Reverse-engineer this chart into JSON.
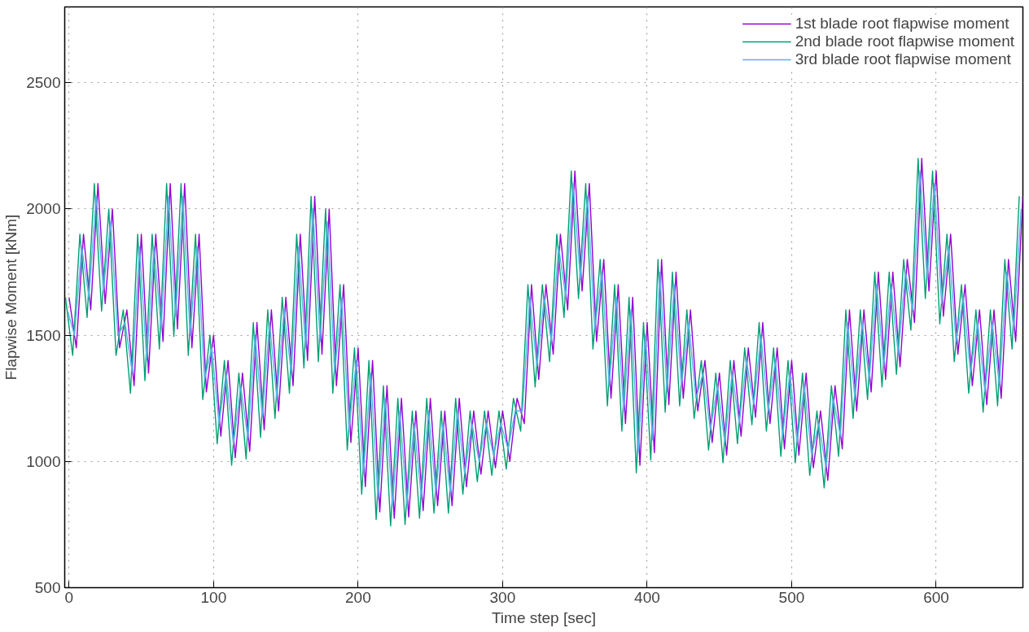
{
  "chart_data": {
    "type": "line",
    "xlabel": "Time step [sec]",
    "ylabel": "Flapwise Moment [kNm]",
    "xlim": [
      -3,
      660
    ],
    "ylim": [
      500,
      2800
    ],
    "xticks": [
      0,
      100,
      200,
      300,
      400,
      500,
      600
    ],
    "yticks": [
      500,
      1000,
      1500,
      2000,
      2500
    ],
    "grid": true,
    "legend": "top right",
    "line_style": "solid",
    "marker": "none",
    "x": [
      0,
      5,
      10,
      15,
      20,
      25,
      30,
      35,
      40,
      45,
      50,
      55,
      60,
      65,
      70,
      75,
      80,
      85,
      90,
      95,
      100,
      105,
      110,
      115,
      120,
      125,
      130,
      135,
      140,
      145,
      150,
      155,
      160,
      165,
      170,
      175,
      180,
      185,
      190,
      195,
      200,
      205,
      210,
      215,
      220,
      225,
      230,
      235,
      240,
      245,
      250,
      255,
      260,
      265,
      270,
      275,
      280,
      285,
      290,
      295,
      300,
      305,
      310,
      315,
      320,
      325,
      330,
      335,
      340,
      345,
      350,
      355,
      360,
      365,
      370,
      375,
      380,
      385,
      390,
      395,
      400,
      405,
      410,
      415,
      420,
      425,
      430,
      435,
      440,
      445,
      450,
      455,
      460,
      465,
      470,
      475,
      480,
      485,
      490,
      495,
      500,
      505,
      510,
      515,
      520,
      525,
      530,
      535,
      540,
      545,
      550,
      555,
      560,
      565,
      570,
      575,
      580,
      585,
      590,
      595,
      600,
      605,
      610,
      615,
      620,
      625,
      630,
      635,
      640,
      645,
      650,
      655,
      660
    ],
    "series": [
      {
        "name": "1st blade root flapwise moment",
        "color": "#9400d3",
        "values": [
          1650,
          1450,
          1900,
          1600,
          2100,
          1625,
          2000,
          1450,
          1600,
          1300,
          1900,
          1350,
          1900,
          1475,
          2100,
          1525,
          2100,
          1450,
          1900,
          1275,
          1500,
          1100,
          1400,
          1015,
          1350,
          1040,
          1550,
          1125,
          1600,
          1200,
          1650,
          1300,
          1900,
          1400,
          2050,
          1425,
          2000,
          1300,
          1700,
          1075,
          1450,
          900,
          1400,
          800,
          1300,
          775,
          1250,
          780,
          1200,
          805,
          1250,
          825,
          1200,
          825,
          1250,
          900,
          1200,
          950,
          1200,
          975,
          1200,
          1000,
          1250,
          1150,
          1700,
          1325,
          1700,
          1425,
          1900,
          1600,
          2150,
          1675,
          2100,
          1475,
          1800,
          1250,
          1700,
          1150,
          1650,
          985,
          1550,
          1035,
          1800,
          1225,
          1750,
          1250,
          1600,
          1200,
          1400,
          1075,
          1350,
          1025,
          1400,
          1100,
          1450,
          1175,
          1550,
          1150,
          1450,
          1050,
          1400,
          1025,
          1350,
          975,
          1200,
          925,
          1300,
          1050,
          1600,
          1200,
          1600,
          1275,
          1750,
          1325,
          1750,
          1375,
          1800,
          1550,
          2200,
          1675,
          2150,
          1575,
          1900,
          1425,
          1700,
          1300,
          1600,
          1225,
          1600,
          1250,
          1800,
          1475,
          2050
        ]
      },
      {
        "name": "2nd blade root flapwise moment",
        "color": "#009e73",
        "x": [
          -2.5,
          2.5,
          7.5,
          12.5,
          17.5,
          22.5,
          27.5,
          32.5,
          37.5,
          42.5,
          47.5,
          52.5,
          57.5,
          62.5,
          67.5,
          72.5,
          77.5,
          82.5,
          87.5,
          92.5,
          97.5,
          102.5,
          107.5,
          112.5,
          117.5,
          122.5,
          127.5,
          132.5,
          137.5,
          142.5,
          147.5,
          152.5,
          157.5,
          162.5,
          167.5,
          172.5,
          177.5,
          182.5,
          187.5,
          192.5,
          197.5,
          202.5,
          207.5,
          212.5,
          217.5,
          222.5,
          227.5,
          232.5,
          237.5,
          242.5,
          247.5,
          252.5,
          257.5,
          262.5,
          267.5,
          272.5,
          277.5,
          282.5,
          287.5,
          292.5,
          297.5,
          302.5,
          307.5,
          312.5,
          317.5,
          322.5,
          327.5,
          332.5,
          337.5,
          342.5,
          347.5,
          352.5,
          357.5,
          362.5,
          367.5,
          372.5,
          377.5,
          382.5,
          387.5,
          392.5,
          397.5,
          402.5,
          407.5,
          412.5,
          417.5,
          422.5,
          427.5,
          432.5,
          437.5,
          442.5,
          447.5,
          452.5,
          457.5,
          462.5,
          467.5,
          472.5,
          477.5,
          482.5,
          487.5,
          492.5,
          497.5,
          502.5,
          507.5,
          512.5,
          517.5,
          522.5,
          527.5,
          532.5,
          537.5,
          542.5,
          547.5,
          552.5,
          557.5,
          562.5,
          567.5,
          572.5,
          577.5,
          582.5,
          587.5,
          592.5,
          597.5,
          602.5,
          607.5,
          612.5,
          617.5,
          622.5,
          627.5,
          632.5,
          637.5,
          642.5,
          647.5,
          652.5,
          657.5
        ],
        "values": [
          1650,
          1420,
          1900,
          1570,
          2100,
          1595,
          2000,
          1420,
          1600,
          1270,
          1900,
          1320,
          1900,
          1445,
          2100,
          1495,
          2100,
          1420,
          1900,
          1245,
          1500,
          1070,
          1400,
          985,
          1350,
          1010,
          1550,
          1095,
          1600,
          1170,
          1650,
          1270,
          1900,
          1370,
          2050,
          1395,
          2000,
          1270,
          1700,
          1045,
          1450,
          870,
          1400,
          770,
          1300,
          745,
          1250,
          750,
          1200,
          775,
          1250,
          795,
          1200,
          795,
          1250,
          870,
          1200,
          920,
          1200,
          945,
          1200,
          970,
          1250,
          1120,
          1700,
          1295,
          1700,
          1395,
          1900,
          1570,
          2150,
          1645,
          2100,
          1445,
          1800,
          1220,
          1700,
          1120,
          1650,
          955,
          1550,
          1005,
          1800,
          1195,
          1750,
          1220,
          1600,
          1170,
          1400,
          1045,
          1350,
          995,
          1400,
          1070,
          1450,
          1145,
          1550,
          1120,
          1450,
          1020,
          1400,
          995,
          1350,
          945,
          1200,
          895,
          1300,
          1020,
          1600,
          1170,
          1600,
          1245,
          1750,
          1295,
          1750,
          1345,
          1800,
          1520,
          2200,
          1645,
          2150,
          1545,
          1900,
          1395,
          1700,
          1270,
          1600,
          1195,
          1600,
          1220,
          1800,
          1445,
          2050
        ]
      },
      {
        "name": "3rd blade root flapwise moment",
        "color": "#56b4e9",
        "x": [
          -1.25,
          3.75,
          8.75,
          13.75,
          18.75,
          23.75,
          28.75,
          33.75,
          38.75,
          43.75,
          48.75,
          53.75,
          58.75,
          63.75,
          68.75,
          73.75,
          78.75,
          83.75,
          88.75,
          93.75,
          98.75,
          103.75,
          108.75,
          113.75,
          118.75,
          123.75,
          128.75,
          133.75,
          138.75,
          143.75,
          148.75,
          153.75,
          158.75,
          163.75,
          168.75,
          173.75,
          178.75,
          183.75,
          188.75,
          193.75,
          198.75,
          203.75,
          208.75,
          213.75,
          218.75,
          223.75,
          228.75,
          233.75,
          238.75,
          243.75,
          248.75,
          253.75,
          258.75,
          263.75,
          268.75,
          273.75,
          278.75,
          283.75,
          288.75,
          293.75,
          298.75,
          303.75,
          308.75,
          313.75,
          318.75,
          323.75,
          328.75,
          333.75,
          338.75,
          343.75,
          348.75,
          353.75,
          358.75,
          363.75,
          368.75,
          373.75,
          378.75,
          383.75,
          388.75,
          393.75,
          398.75,
          403.75,
          408.75,
          413.75,
          418.75,
          423.75,
          428.75,
          433.75,
          438.75,
          443.75,
          448.75,
          453.75,
          458.75,
          463.75,
          468.75,
          473.75,
          478.75,
          483.75,
          488.75,
          493.75,
          498.75,
          503.75,
          508.75,
          513.75,
          518.75,
          523.75,
          528.75,
          533.75,
          538.75,
          543.75,
          548.75,
          553.75,
          558.75,
          563.75,
          568.75,
          573.75,
          578.75,
          583.75,
          588.75,
          593.75,
          598.75,
          603.75,
          608.75,
          613.75,
          618.75,
          623.75,
          628.75,
          633.75,
          638.75,
          643.75,
          648.75,
          653.75,
          658.75
        ],
        "values": [
          1600,
          1500,
          1850,
          1650,
          2050,
          1675,
          1950,
          1500,
          1550,
          1350,
          1850,
          1400,
          1850,
          1525,
          2050,
          1575,
          2050,
          1500,
          1850,
          1325,
          1450,
          1150,
          1350,
          1065,
          1300,
          1090,
          1500,
          1175,
          1550,
          1250,
          1600,
          1350,
          1850,
          1450,
          2000,
          1475,
          1950,
          1350,
          1650,
          1125,
          1400,
          950,
          1350,
          850,
          1250,
          825,
          1200,
          830,
          1150,
          855,
          1200,
          875,
          1150,
          875,
          1200,
          950,
          1150,
          1000,
          1150,
          1025,
          1150,
          1050,
          1200,
          1200,
          1650,
          1375,
          1650,
          1475,
          1850,
          1650,
          2100,
          1725,
          2050,
          1525,
          1750,
          1300,
          1650,
          1200,
          1600,
          1035,
          1500,
          1085,
          1750,
          1275,
          1700,
          1300,
          1550,
          1250,
          1350,
          1125,
          1300,
          1075,
          1350,
          1150,
          1400,
          1225,
          1500,
          1200,
          1400,
          1100,
          1350,
          1075,
          1300,
          1025,
          1150,
          975,
          1250,
          1100,
          1550,
          1250,
          1550,
          1325,
          1700,
          1375,
          1700,
          1425,
          1750,
          1600,
          2150,
          1725,
          2100,
          1625,
          1850,
          1475,
          1650,
          1350,
          1550,
          1275,
          1550,
          1300,
          1750,
          1525,
          2000
        ]
      }
    ]
  }
}
